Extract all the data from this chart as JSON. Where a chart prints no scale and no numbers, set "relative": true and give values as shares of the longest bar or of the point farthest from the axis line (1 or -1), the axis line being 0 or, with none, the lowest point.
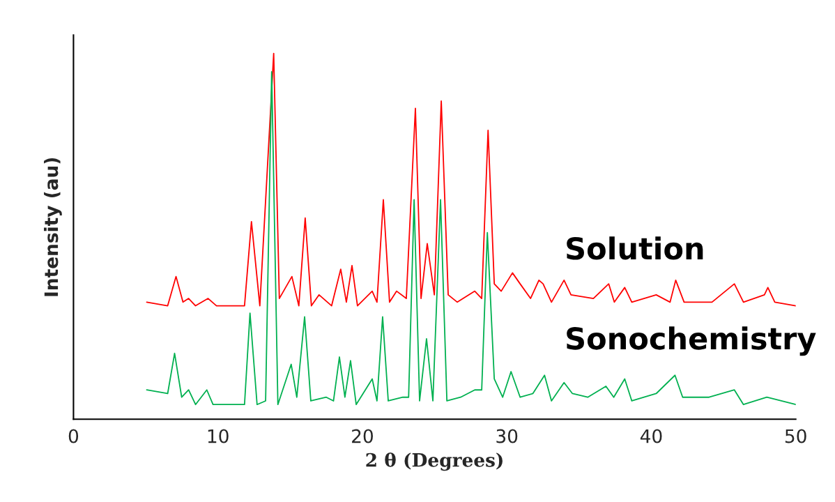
{
  "chart_data": {
    "type": "line",
    "xlabel": "2 θ (Degrees)",
    "ylabel": "Intensity (au)",
    "relative": true,
    "xlim": [
      0,
      50
    ],
    "xticks": [
      0,
      10,
      20,
      30,
      40,
      50
    ],
    "grid": false,
    "legend": false,
    "marker": "none",
    "line_style": "solid",
    "series": [
      {
        "name": "Solution",
        "color": "#ff0000",
        "x": [
          5.07,
          6.52,
          7.1,
          7.58,
          7.97,
          8.45,
          9.32,
          9.9,
          11.84,
          12.32,
          12.9,
          13.86,
          14.25,
          15.12,
          15.6,
          16.04,
          16.47,
          17.0,
          17.87,
          18.5,
          18.89,
          19.28,
          19.66,
          20.68,
          21.01,
          21.45,
          21.88,
          22.37,
          23.04,
          23.67,
          24.06,
          24.49,
          24.98,
          25.46,
          25.94,
          26.57,
          27.78,
          28.26,
          28.7,
          29.13,
          29.61,
          30.39,
          30.92,
          31.64,
          32.22,
          32.51,
          33.09,
          33.96,
          34.44,
          35.99,
          37.05,
          37.44,
          38.16,
          38.65,
          40.34,
          41.3,
          41.69,
          42.27,
          44.2,
          45.75,
          46.38,
          47.83,
          48.07,
          48.55,
          50.0
        ],
        "values": [
          0.32,
          0.31,
          0.39,
          0.32,
          0.33,
          0.31,
          0.33,
          0.31,
          0.31,
          0.54,
          0.31,
          1.0,
          0.33,
          0.39,
          0.31,
          0.55,
          0.31,
          0.34,
          0.31,
          0.41,
          0.32,
          0.42,
          0.31,
          0.35,
          0.32,
          0.6,
          0.32,
          0.35,
          0.33,
          0.85,
          0.33,
          0.48,
          0.34,
          0.87,
          0.34,
          0.32,
          0.35,
          0.33,
          0.79,
          0.37,
          0.35,
          0.4,
          0.37,
          0.33,
          0.38,
          0.37,
          0.32,
          0.38,
          0.34,
          0.33,
          0.37,
          0.32,
          0.36,
          0.32,
          0.34,
          0.32,
          0.38,
          0.32,
          0.32,
          0.37,
          0.32,
          0.34,
          0.36,
          0.32,
          0.31
        ]
      },
      {
        "name": "Sonochemistry",
        "color": "#00b050",
        "x": [
          5.07,
          6.52,
          7.0,
          7.49,
          7.97,
          8.45,
          9.23,
          9.66,
          11.84,
          12.22,
          12.71,
          13.3,
          13.72,
          14.15,
          15.07,
          15.46,
          16.0,
          16.43,
          17.5,
          18.0,
          18.41,
          18.79,
          19.18,
          19.57,
          20.68,
          21.01,
          21.4,
          21.79,
          22.8,
          23.2,
          23.58,
          23.96,
          24.44,
          24.88,
          25.41,
          25.85,
          26.8,
          27.78,
          28.26,
          28.65,
          29.13,
          29.71,
          30.29,
          30.92,
          31.8,
          32.61,
          33.09,
          33.96,
          34.54,
          35.6,
          36.86,
          37.4,
          38.16,
          38.65,
          40.34,
          41.64,
          42.17,
          44.0,
          45.75,
          46.38,
          48.0,
          50.0
        ],
        "values": [
          0.08,
          0.07,
          0.18,
          0.06,
          0.08,
          0.04,
          0.08,
          0.04,
          0.04,
          0.29,
          0.04,
          0.05,
          0.95,
          0.04,
          0.15,
          0.06,
          0.28,
          0.05,
          0.06,
          0.05,
          0.17,
          0.06,
          0.16,
          0.04,
          0.11,
          0.05,
          0.28,
          0.05,
          0.06,
          0.06,
          0.6,
          0.05,
          0.22,
          0.05,
          0.6,
          0.05,
          0.06,
          0.08,
          0.08,
          0.51,
          0.11,
          0.06,
          0.13,
          0.06,
          0.07,
          0.12,
          0.05,
          0.1,
          0.07,
          0.06,
          0.09,
          0.06,
          0.11,
          0.05,
          0.07,
          0.12,
          0.06,
          0.06,
          0.08,
          0.04,
          0.06,
          0.04
        ]
      }
    ]
  }
}
